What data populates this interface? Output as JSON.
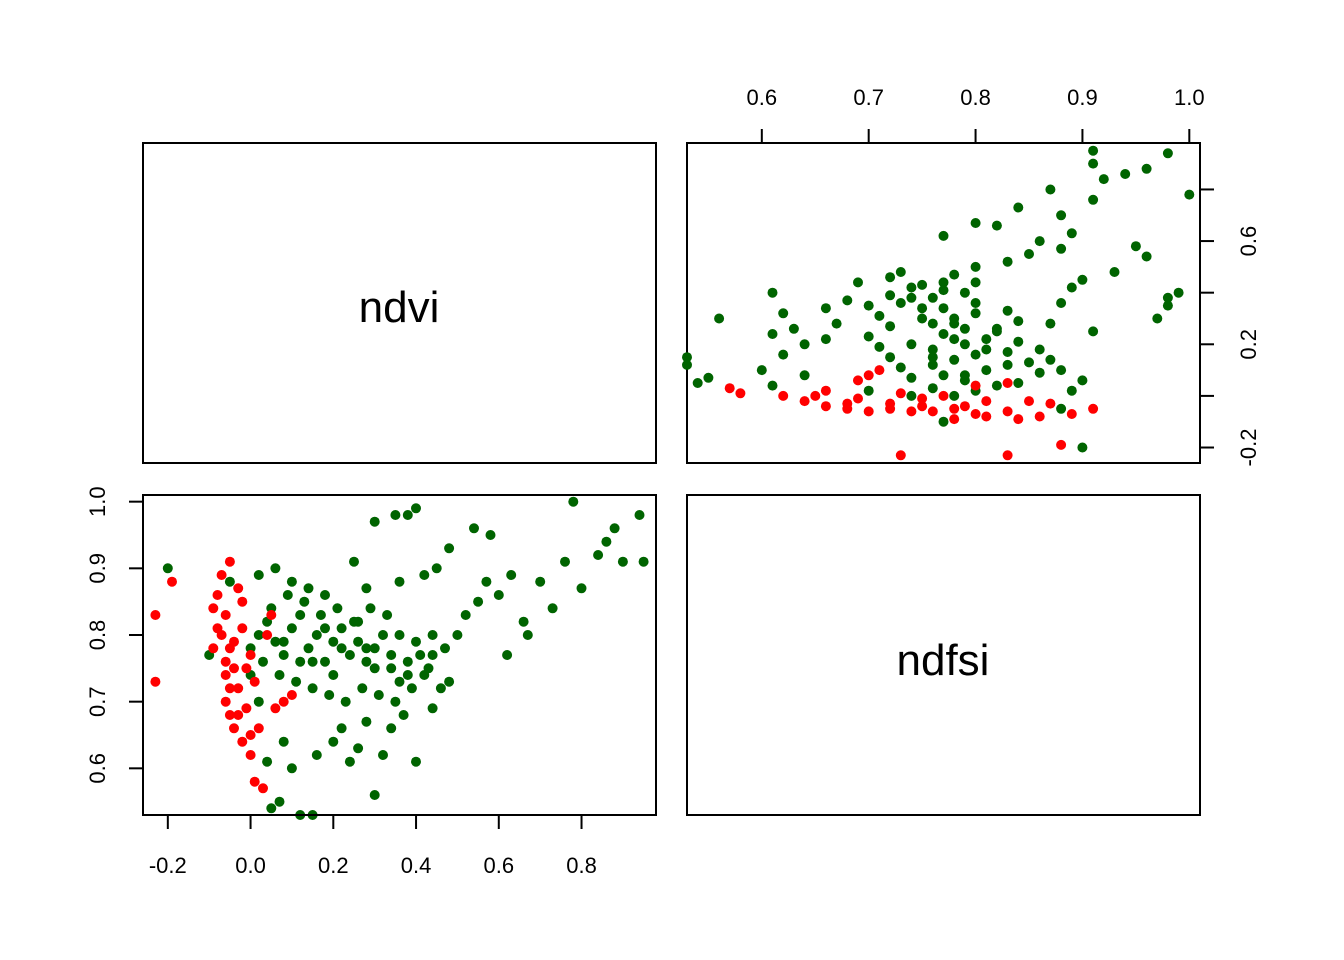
{
  "chart_data": {
    "type": "scatter",
    "variables": [
      "ndvi",
      "ndfsi"
    ],
    "axes": {
      "ndvi": {
        "range": [
          -0.26,
          0.98
        ],
        "ticks": [
          -0.2,
          0.0,
          0.2,
          0.4,
          0.6,
          0.8
        ],
        "tick_labels": [
          "-0.2",
          "0.0",
          "0.2",
          "0.4",
          "0.6",
          "0.8"
        ]
      },
      "ndfsi": {
        "range": [
          0.53,
          1.01
        ],
        "ticks": [
          0.6,
          0.7,
          0.8,
          0.9,
          1.0
        ],
        "tick_labels": [
          "0.6",
          "0.7",
          "0.8",
          "0.9",
          "1.0"
        ]
      }
    },
    "series": [
      {
        "name": "green",
        "color": "#006400",
        "points": [
          [
            0.0,
            0.78
          ],
          [
            0.02,
            0.8
          ],
          [
            0.04,
            0.82
          ],
          [
            0.06,
            0.79
          ],
          [
            0.08,
            0.77
          ],
          [
            0.1,
            0.81
          ],
          [
            0.12,
            0.83
          ],
          [
            0.14,
            0.78
          ],
          [
            0.16,
            0.8
          ],
          [
            0.18,
            0.76
          ],
          [
            0.2,
            0.79
          ],
          [
            0.22,
            0.81
          ],
          [
            0.24,
            0.77
          ],
          [
            0.26,
            0.82
          ],
          [
            0.28,
            0.78
          ],
          [
            0.3,
            0.75
          ],
          [
            0.32,
            0.8
          ],
          [
            0.34,
            0.77
          ],
          [
            0.36,
            0.73
          ],
          [
            0.38,
            0.76
          ],
          [
            0.4,
            0.79
          ],
          [
            0.42,
            0.74
          ],
          [
            0.44,
            0.77
          ],
          [
            0.46,
            0.72
          ],
          [
            0.05,
            0.84
          ],
          [
            0.09,
            0.86
          ],
          [
            0.13,
            0.85
          ],
          [
            0.17,
            0.83
          ],
          [
            0.21,
            0.84
          ],
          [
            0.25,
            0.82
          ],
          [
            0.29,
            0.84
          ],
          [
            0.33,
            0.83
          ],
          [
            0.03,
            0.76
          ],
          [
            0.07,
            0.74
          ],
          [
            0.11,
            0.73
          ],
          [
            0.15,
            0.72
          ],
          [
            0.19,
            0.71
          ],
          [
            0.23,
            0.7
          ],
          [
            0.27,
            0.72
          ],
          [
            0.31,
            0.71
          ],
          [
            0.35,
            0.7
          ],
          [
            0.39,
            0.72
          ],
          [
            0.43,
            0.75
          ],
          [
            0.47,
            0.78
          ],
          [
            0.5,
            0.8
          ],
          [
            0.52,
            0.83
          ],
          [
            0.55,
            0.85
          ],
          [
            0.57,
            0.88
          ],
          [
            0.6,
            0.86
          ],
          [
            0.63,
            0.89
          ],
          [
            0.66,
            0.82
          ],
          [
            0.7,
            0.88
          ],
          [
            0.73,
            0.84
          ],
          [
            0.76,
            0.91
          ],
          [
            0.78,
            1.0
          ],
          [
            0.8,
            0.87
          ],
          [
            0.84,
            0.92
          ],
          [
            0.86,
            0.94
          ],
          [
            0.9,
            0.91
          ],
          [
            0.94,
            0.98
          ],
          [
            0.95,
            0.91
          ],
          [
            0.88,
            0.96
          ],
          [
            0.62,
            0.77
          ],
          [
            0.67,
            0.8
          ],
          [
            0.54,
            0.96
          ],
          [
            0.58,
            0.95
          ],
          [
            0.45,
            0.9
          ],
          [
            0.48,
            0.93
          ],
          [
            0.4,
            0.99
          ],
          [
            0.38,
            0.98
          ],
          [
            0.35,
            0.98
          ],
          [
            0.3,
            0.97
          ],
          [
            0.25,
            0.91
          ],
          [
            0.28,
            0.87
          ],
          [
            0.36,
            0.88
          ],
          [
            0.42,
            0.89
          ],
          [
            -0.2,
            0.9
          ],
          [
            -0.1,
            0.77
          ],
          [
            -0.05,
            0.88
          ],
          [
            0.02,
            0.89
          ],
          [
            0.06,
            0.9
          ],
          [
            0.1,
            0.88
          ],
          [
            0.14,
            0.87
          ],
          [
            0.18,
            0.86
          ],
          [
            0.04,
            0.61
          ],
          [
            0.05,
            0.54
          ],
          [
            0.07,
            0.55
          ],
          [
            0.12,
            0.53
          ],
          [
            0.15,
            0.53
          ],
          [
            0.08,
            0.64
          ],
          [
            0.1,
            0.6
          ],
          [
            0.16,
            0.62
          ],
          [
            0.2,
            0.64
          ],
          [
            0.22,
            0.66
          ],
          [
            0.24,
            0.61
          ],
          [
            0.26,
            0.63
          ],
          [
            0.28,
            0.67
          ],
          [
            0.3,
            0.56
          ],
          [
            0.32,
            0.62
          ],
          [
            0.34,
            0.66
          ],
          [
            0.4,
            0.61
          ],
          [
            0.37,
            0.68
          ],
          [
            0.44,
            0.69
          ],
          [
            0.48,
            0.73
          ],
          [
            0.02,
            0.7
          ],
          [
            0.0,
            0.74
          ],
          [
            0.12,
            0.76
          ],
          [
            0.2,
            0.74
          ],
          [
            0.28,
            0.76
          ],
          [
            0.36,
            0.8
          ],
          [
            0.34,
            0.75
          ],
          [
            0.26,
            0.79
          ],
          [
            0.18,
            0.81
          ],
          [
            0.08,
            0.79
          ],
          [
            0.15,
            0.76
          ],
          [
            0.22,
            0.78
          ],
          [
            0.3,
            0.78
          ],
          [
            0.38,
            0.74
          ],
          [
            0.41,
            0.77
          ],
          [
            0.44,
            0.8
          ]
        ]
      },
      {
        "name": "red",
        "color": "#ff0000",
        "points": [
          [
            -0.23,
            0.83
          ],
          [
            -0.23,
            0.73
          ],
          [
            -0.19,
            0.88
          ],
          [
            -0.09,
            0.84
          ],
          [
            -0.08,
            0.86
          ],
          [
            -0.07,
            0.8
          ],
          [
            -0.06,
            0.83
          ],
          [
            -0.05,
            0.78
          ],
          [
            -0.04,
            0.75
          ],
          [
            -0.03,
            0.72
          ],
          [
            -0.06,
            0.7
          ],
          [
            -0.05,
            0.68
          ],
          [
            -0.04,
            0.66
          ],
          [
            -0.02,
            0.64
          ],
          [
            0.0,
            0.62
          ],
          [
            0.01,
            0.58
          ],
          [
            0.03,
            0.57
          ],
          [
            -0.03,
            0.87
          ],
          [
            -0.05,
            0.91
          ],
          [
            -0.07,
            0.89
          ],
          [
            -0.08,
            0.81
          ],
          [
            -0.06,
            0.76
          ],
          [
            -0.04,
            0.79
          ],
          [
            -0.02,
            0.81
          ],
          [
            0.0,
            0.77
          ],
          [
            0.01,
            0.73
          ],
          [
            -0.01,
            0.69
          ],
          [
            0.02,
            0.66
          ],
          [
            0.04,
            0.8
          ],
          [
            0.05,
            0.83
          ],
          [
            0.08,
            0.7
          ],
          [
            0.1,
            0.71
          ],
          [
            0.06,
            0.69
          ],
          [
            -0.02,
            0.85
          ],
          [
            -0.09,
            0.78
          ],
          [
            -0.01,
            0.75
          ],
          [
            -0.05,
            0.72
          ],
          [
            -0.03,
            0.68
          ],
          [
            0.0,
            0.65
          ],
          [
            -0.06,
            0.74
          ]
        ]
      }
    ]
  }
}
